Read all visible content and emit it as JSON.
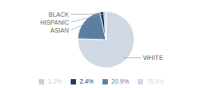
{
  "chart_data": {
    "type": "pie",
    "categories": [
      "WHITE",
      "ASIAN",
      "HISPANIC",
      "BLACK"
    ],
    "values": [
      75.5,
      20.9,
      2.4,
      1.2
    ],
    "value_labels": [
      "75.5%",
      "20.9%",
      "2.4%",
      "1.2%"
    ],
    "colors": [
      "#d0d8e4",
      "#5a7fa0",
      "#1e3a5f",
      "#c8d0d8"
    ],
    "legend": "bottom"
  }
}
